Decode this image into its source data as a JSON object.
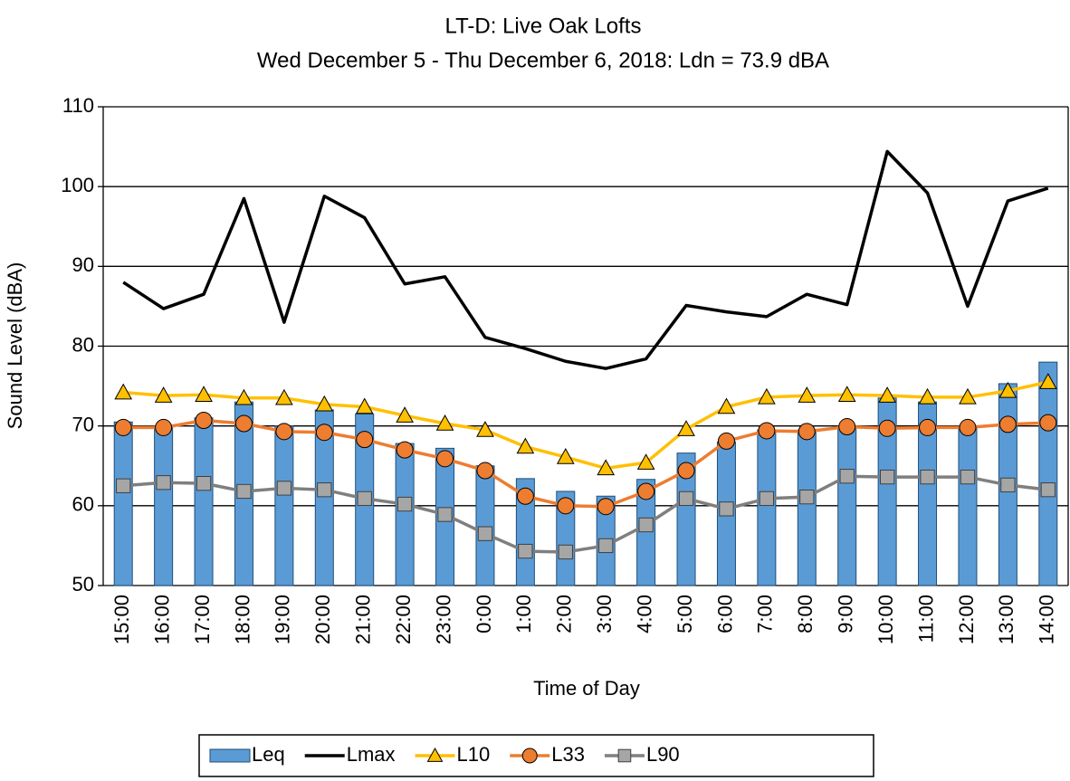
{
  "chart_data": {
    "type": "bar-line",
    "title": "LT-D: Live Oak Lofts",
    "subtitle": "Wed December 5 - Thu December 6, 2018: Ldn = 73.9 dBA",
    "x_label": "Time of Day",
    "y_label": "Sound Level (dBA)",
    "categories": [
      "15:00",
      "16:00",
      "17:00",
      "18:00",
      "19:00",
      "20:00",
      "21:00",
      "22:00",
      "23:00",
      "0:00",
      "1:00",
      "2:00",
      "3:00",
      "4:00",
      "5:00",
      "6:00",
      "7:00",
      "8:00",
      "9:00",
      "10:00",
      "11:00",
      "12:00",
      "13:00",
      "14:00"
    ],
    "ylim": [
      50,
      110
    ],
    "yticks": [
      50,
      60,
      70,
      80,
      90,
      100,
      110
    ],
    "grid": true,
    "legend": "bottom",
    "series": [
      {
        "name": "Leq",
        "type": "bar",
        "color": "#5b9bd5",
        "values": [
          70.5,
          70,
          71,
          73,
          70,
          72,
          71.5,
          67.8,
          67.2,
          65,
          63.4,
          61.8,
          61.2,
          63.3,
          66.6,
          68,
          69.5,
          69.5,
          70,
          73.5,
          73,
          70,
          75.3,
          78
        ]
      },
      {
        "name": "Lmax",
        "type": "line",
        "color": "#000000",
        "marker": "none",
        "values": [
          88,
          84.7,
          86.5,
          98.5,
          83,
          98.8,
          96.1,
          87.8,
          88.7,
          81.1,
          79.7,
          78.1,
          77.2,
          78.4,
          85.1,
          84.3,
          83.7,
          86.5,
          85.2,
          104.4,
          99.2,
          85,
          98.2,
          99.8
        ]
      },
      {
        "name": "L10",
        "type": "line",
        "color": "#ffc000",
        "marker": "triangle",
        "values": [
          74.2,
          73.8,
          73.9,
          73.5,
          73.5,
          72.7,
          72.4,
          71.3,
          70.3,
          69.5,
          67.4,
          66.1,
          64.7,
          65.4,
          69.6,
          72.4,
          73.6,
          73.8,
          73.9,
          73.8,
          73.6,
          73.6,
          74.4,
          75.5
        ]
      },
      {
        "name": "L33",
        "type": "line",
        "color": "#ed7d31",
        "marker": "circle",
        "values": [
          69.8,
          69.8,
          70.7,
          70.3,
          69.3,
          69.2,
          68.3,
          67,
          65.9,
          64.4,
          61.2,
          60,
          59.9,
          61.8,
          64.4,
          68.1,
          69.4,
          69.3,
          69.9,
          69.7,
          69.8,
          69.8,
          70.2,
          70.4
        ]
      },
      {
        "name": "L90",
        "type": "line",
        "color": "#7f7f7f",
        "marker": "square",
        "values": [
          62.5,
          62.9,
          62.8,
          61.8,
          62.2,
          62,
          60.9,
          60.2,
          58.9,
          56.5,
          54.3,
          54.2,
          55,
          57.6,
          60.9,
          59.6,
          60.9,
          61.1,
          63.7,
          63.6,
          63.6,
          63.6,
          62.6,
          62
        ]
      }
    ]
  }
}
